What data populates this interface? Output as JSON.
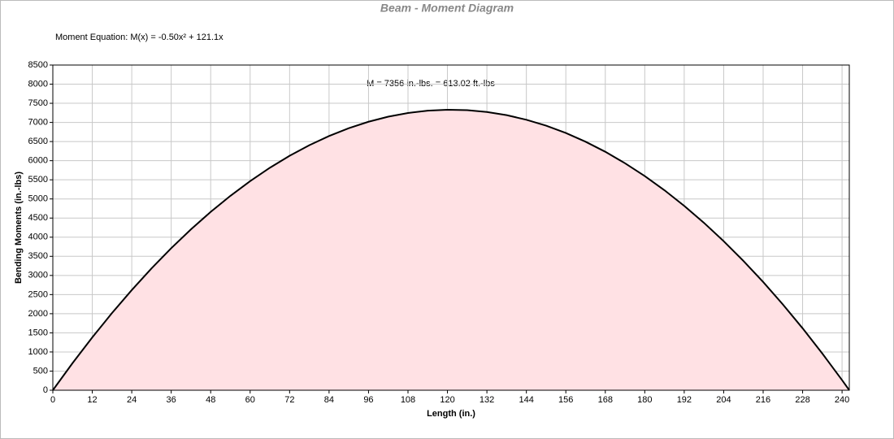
{
  "chart_data": {
    "type": "area",
    "title": "Beam - Moment Diagram",
    "subtitle": "Moment Equation:  M(x) = -0.50x² + 121.1x",
    "annotation": "M = 7356 in.-lbs. = 613.02 ft.-lbs",
    "xlabel": "Length (in.)",
    "ylabel": "Bending Moments (in.-lbs)",
    "x": [
      0,
      6,
      12,
      18,
      24,
      30,
      36,
      42,
      48,
      54,
      60,
      66,
      72,
      78,
      84,
      90,
      96,
      102,
      108,
      114,
      120,
      126,
      132,
      138,
      144,
      150,
      156,
      162,
      168,
      174,
      180,
      186,
      192,
      198,
      204,
      210,
      216,
      222,
      228,
      234,
      240,
      242.2
    ],
    "values": [
      0,
      709,
      1381,
      2018,
      2618,
      3183,
      3712,
      4204,
      4661,
      5081,
      5466,
      5815,
      6127,
      6404,
      6644,
      6849,
      7018,
      7150,
      7247,
      7307,
      7332,
      7321,
      7273,
      7190,
      7070,
      6915,
      6724,
      6496,
      6233,
      5933,
      5598,
      5227,
      4819,
      4376,
      3896,
      3381,
      2830,
      2242,
      1619,
      959,
      264,
      0
    ],
    "color": "#000000",
    "fill": "#ffe1e4",
    "xlim": [
      0,
      242.2
    ],
    "xticks": [
      0,
      12,
      24,
      36,
      48,
      60,
      72,
      84,
      96,
      108,
      120,
      132,
      144,
      156,
      168,
      180,
      192,
      204,
      216,
      228,
      240
    ],
    "ylim": [
      0,
      8500
    ],
    "yticks": [
      0,
      500,
      1000,
      1500,
      2000,
      2500,
      3000,
      3500,
      4000,
      4500,
      5000,
      5500,
      6000,
      6500,
      7000,
      7500,
      8000,
      8500
    ],
    "grid": true
  }
}
